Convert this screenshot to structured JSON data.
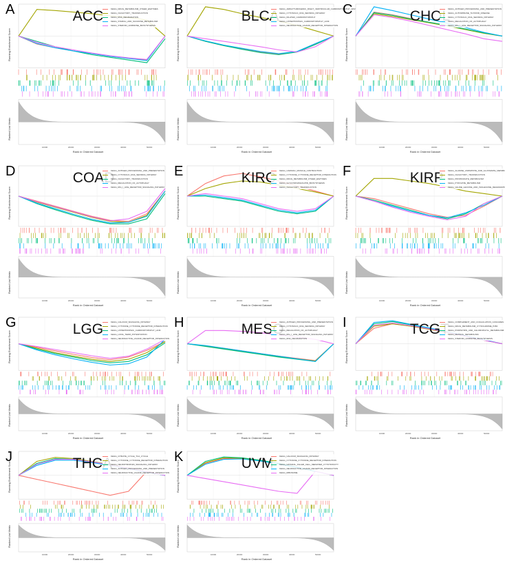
{
  "axes": {
    "xlabel": "Rank in Ordered Dataset",
    "ylabel_es": "Running Enrichment Score",
    "ylabel_metric": "Ranked List Metric",
    "xticks": [
      "10000",
      "20000",
      "30000",
      "40000",
      "50000"
    ]
  },
  "colors": [
    "#F8766D",
    "#A3A500",
    "#00BF7D",
    "#00B0F6",
    "#E76BF3"
  ],
  "chart_data": [
    {
      "letter": "A",
      "title": "ACC",
      "type": "line",
      "ylim": [
        -0.6,
        0.6
      ],
      "legend": [
        "KEGG_DRUG_METABOLISM_OTHER_ENZYMES",
        "KEGG_OLFACTORY_TRANSDUCTION",
        "KEGG_RNA_DEGRADATION",
        "KEGG_STARCH_AND_SUCROSE_METABOLISM",
        "KEGG_STEROID_HORMONE_BIOSYNTHESIS"
      ],
      "series": [
        [
          0,
          -0.15,
          -0.22,
          -0.28,
          -0.33,
          -0.38,
          -0.42,
          -0.45,
          0
        ],
        [
          0,
          0.5,
          0.48,
          0.45,
          0.42,
          0.38,
          0.35,
          0.3,
          0
        ],
        [
          0,
          -0.1,
          -0.2,
          -0.28,
          -0.35,
          -0.4,
          -0.45,
          -0.5,
          -0.05
        ],
        [
          0,
          -0.14,
          -0.22,
          -0.28,
          -0.33,
          -0.38,
          -0.42,
          -0.46,
          0
        ],
        [
          0,
          -0.12,
          -0.2,
          -0.26,
          -0.32,
          -0.37,
          -0.41,
          -0.44,
          0
        ]
      ]
    },
    {
      "letter": "B",
      "title": "BLCA",
      "type": "line",
      "ylim": [
        -0.6,
        0.6
      ],
      "legend": [
        "KEGG_ARRHYTHMOGENIC_RIGHT_VENTRICULAR_CARDIOMYOPATHY_ARVC",
        "KEGG_CYTOSOLIC_DNA_SENSING_PATHWAY",
        "KEGG_DILATED_CARDIOMYOPATHY",
        "KEGG_HYPERTROPHIC_CARDIOMYOPATHY_HCM",
        "KEGG_NEUROACTIVE_LIGAND_RECEPTOR_INTERACTION"
      ],
      "series": [
        [
          0,
          -0.1,
          -0.18,
          -0.24,
          -0.3,
          -0.34,
          -0.3,
          -0.15,
          0
        ],
        [
          0,
          0.55,
          0.5,
          0.42,
          0.35,
          0.28,
          0.2,
          0.1,
          0
        ],
        [
          0,
          -0.1,
          -0.18,
          -0.25,
          -0.31,
          -0.35,
          -0.3,
          -0.16,
          0
        ],
        [
          0,
          -0.09,
          -0.17,
          -0.23,
          -0.29,
          -0.33,
          -0.29,
          -0.14,
          0
        ],
        [
          0,
          -0.05,
          -0.1,
          -0.15,
          -0.2,
          -0.26,
          -0.3,
          -0.2,
          0
        ]
      ]
    },
    {
      "letter": "C",
      "title": "CHOL",
      "type": "line",
      "ylim": [
        -0.6,
        0.6
      ],
      "legend": [
        "KEGG_ANTIGEN_PROCESSING_AND_PRESENTATION",
        "KEGG_AUTOIMMUNE_THYROID_DISEASE",
        "KEGG_CYTOSOLIC_DNA_SENSING_PATHWAY",
        "KEGG_REGULATION_OF_AUTOPHAGY",
        "KEGG_RIG_I_LIKE_RECEPTOR_SIGNALING_PATHWAY"
      ],
      "series": [
        [
          0,
          0.45,
          0.4,
          0.33,
          0.26,
          0.2,
          0.13,
          0.06,
          0
        ],
        [
          0,
          0.42,
          0.37,
          0.31,
          0.25,
          0.19,
          0.12,
          0.05,
          0
        ],
        [
          0,
          0.44,
          0.39,
          0.32,
          0.26,
          0.2,
          0.13,
          0.06,
          0
        ],
        [
          0,
          0.55,
          0.48,
          0.4,
          0.32,
          0.24,
          0.16,
          0.07,
          0
        ],
        [
          0,
          0.4,
          0.35,
          0.28,
          0.2,
          0.12,
          0.04,
          -0.05,
          -0.1
        ]
      ]
    },
    {
      "letter": "D",
      "title": "COAD",
      "type": "line",
      "ylim": [
        -0.6,
        0.6
      ],
      "legend": [
        "KEGG_ANTIGEN_PROCESSING_AND_PRESENTATION",
        "KEGG_CYTOSOLIC_DNA_SENSING_PATHWAY",
        "KEGG_OLFACTORY_TRANSDUCTION",
        "KEGG_REGULATION_OF_AUTOPHAGY",
        "KEGG_RIG_I_LIKE_RECEPTOR_SIGNALING_PATHWAY"
      ],
      "series": [
        [
          0,
          -0.1,
          -0.2,
          -0.3,
          -0.4,
          -0.48,
          -0.5,
          -0.35,
          0.1
        ],
        [
          0,
          -0.12,
          -0.22,
          -0.32,
          -0.42,
          -0.5,
          -0.52,
          -0.38,
          0.1
        ],
        [
          0,
          -0.15,
          -0.27,
          -0.38,
          -0.48,
          -0.55,
          -0.55,
          -0.45,
          0.05
        ],
        [
          0,
          -0.14,
          -0.25,
          -0.36,
          -0.46,
          -0.53,
          -0.52,
          -0.4,
          0.1
        ],
        [
          0,
          -0.11,
          -0.21,
          -0.31,
          -0.41,
          -0.49,
          -0.45,
          -0.3,
          0.15
        ]
      ]
    },
    {
      "letter": "E",
      "title": "KIRC",
      "type": "line",
      "ylim": [
        -0.6,
        0.6
      ],
      "legend": [
        "KEGG_CARDIAC_MUSCLE_CONTRACTION",
        "KEGG_CYTOKINE_CYTOKINE_RECEPTOR_INTERACTION",
        "KEGG_DRUG_METABOLISM_OTHER_ENZYMES",
        "KEGG_GLYCOSPHINGOLIPID_BIOSYNTHESIS",
        "KEGG_OLFACTORY_TRANSDUCTION"
      ],
      "series": [
        [
          0,
          0.25,
          0.4,
          0.45,
          0.38,
          0.3,
          0.2,
          0.1,
          0
        ],
        [
          0,
          0.15,
          0.25,
          0.3,
          0.28,
          0.22,
          0.15,
          0.08,
          0
        ],
        [
          0,
          0,
          -0.05,
          -0.1,
          -0.2,
          -0.3,
          -0.35,
          -0.3,
          0
        ],
        [
          0,
          0.02,
          -0.03,
          -0.08,
          -0.18,
          -0.28,
          -0.33,
          -0.28,
          0
        ],
        [
          0,
          0.05,
          0,
          -0.05,
          -0.15,
          -0.25,
          -0.3,
          -0.25,
          0
        ]
      ]
    },
    {
      "letter": "F",
      "title": "KIRP",
      "type": "line",
      "ylim": [
        -0.6,
        0.6
      ],
      "legend": [
        "KEGG_ALANINE_ASPARTATE_AND_GLUTAMATE_METABOLISM",
        "KEGG_OLFACTORY_TRANSDUCTION",
        "KEGG_PROPANOATE_METABOLISM",
        "KEGG_PYRUVATE_METABOLISM",
        "KEGG_VALINE_LEUCINE_AND_ISOLEUCINE_DEGRADATION"
      ],
      "series": [
        [
          0,
          -0.05,
          -0.15,
          -0.25,
          -0.35,
          -0.42,
          -0.38,
          -0.2,
          0
        ],
        [
          0,
          0.35,
          0.35,
          0.3,
          0.25,
          0.18,
          0.1,
          0.05,
          0
        ],
        [
          0,
          -0.08,
          -0.18,
          -0.28,
          -0.38,
          -0.45,
          -0.35,
          -0.15,
          0
        ],
        [
          0,
          -0.1,
          -0.2,
          -0.3,
          -0.38,
          -0.43,
          -0.33,
          -0.18,
          0
        ],
        [
          0,
          -0.1,
          -0.22,
          -0.32,
          -0.4,
          -0.47,
          -0.4,
          -0.15,
          0
        ]
      ]
    },
    {
      "letter": "G",
      "title": "LGG",
      "type": "line",
      "ylim": [
        -0.6,
        0.6
      ],
      "legend": [
        "KEGG_CALCIUM_SIGNALING_PATHWAY",
        "KEGG_CYTOKINE_CYTOKINE_RECEPTOR_INTERACTION",
        "KEGG_HYPERTROPHIC_CARDIOMYOPATHY_HCM",
        "KEGG_LONG_TERM_POTENTIATION",
        "KEGG_NEUROACTIVE_LIGAND_RECEPTOR_INTERACTION"
      ],
      "series": [
        [
          0,
          -0.08,
          -0.16,
          -0.24,
          -0.31,
          -0.36,
          -0.3,
          -0.15,
          0.05
        ],
        [
          0,
          -0.1,
          -0.2,
          -0.28,
          -0.35,
          -0.4,
          -0.35,
          -0.2,
          0.05
        ],
        [
          0,
          -0.12,
          -0.22,
          -0.3,
          -0.38,
          -0.43,
          -0.4,
          -0.25,
          0.02
        ],
        [
          0,
          -0.14,
          -0.25,
          -0.34,
          -0.42,
          -0.48,
          -0.45,
          -0.3,
          0.1
        ],
        [
          0,
          -0.06,
          -0.13,
          -0.2,
          -0.27,
          -0.33,
          -0.28,
          -0.12,
          0.1
        ]
      ]
    },
    {
      "letter": "H",
      "title": "MESO",
      "type": "line",
      "ylim": [
        -0.6,
        0.6
      ],
      "legend": [
        "KEGG_ANTIGEN_PROCESSING_AND_PRESENTATION",
        "KEGG_CYTOSOLIC_DNA_SENSING_PATHWAY",
        "KEGG_REGULATION_OF_AUTOPHAGY",
        "KEGG_RIG_I_LIKE_RECEPTOR_SIGNALING_PATHWAY",
        "KEGG_RNA_DEGRADATION"
      ],
      "series": [
        [
          0,
          -0.05,
          -0.1,
          -0.16,
          -0.22,
          -0.28,
          -0.33,
          -0.38,
          0
        ],
        [
          0,
          -0.05,
          -0.11,
          -0.17,
          -0.23,
          -0.29,
          -0.34,
          -0.39,
          0
        ],
        [
          0,
          -0.06,
          -0.12,
          -0.18,
          -0.24,
          -0.3,
          -0.35,
          -0.4,
          0
        ],
        [
          0,
          -0.04,
          -0.1,
          -0.16,
          -0.22,
          -0.28,
          -0.34,
          -0.4,
          0
        ],
        [
          0,
          0.3,
          0.3,
          0.28,
          0.25,
          0.2,
          0.15,
          0.1,
          0
        ]
      ]
    },
    {
      "letter": "I",
      "title": "TCGT",
      "type": "line",
      "ylim": [
        -0.6,
        0.6
      ],
      "legend": [
        "KEGG_COMPLEMENT_AND_COAGULATION_CASCADES",
        "KEGG_DRUG_METABOLISM_CYTOCHROME_P450",
        "KEGG_PORPHYRIN_AND_CHLOROPHYLL_METABOLISM",
        "KEGG_RETINOL_METABOLISM",
        "KEGG_STEROID_HORMONE_BIOSYNTHESIS"
      ],
      "series": [
        [
          0,
          0.35,
          0.45,
          0.4,
          0.33,
          0.25,
          0.17,
          0.08,
          0
        ],
        [
          0,
          0.4,
          0.45,
          0.4,
          0.33,
          0.25,
          0.17,
          0.08,
          0
        ],
        [
          0,
          0.45,
          0.5,
          0.43,
          0.35,
          0.27,
          0.18,
          0.09,
          0
        ],
        [
          0,
          0.48,
          0.52,
          0.44,
          0.36,
          0.27,
          0.18,
          0.09,
          0
        ],
        [
          0,
          0.42,
          0.47,
          0.41,
          0.34,
          0.26,
          0.17,
          0.08,
          0
        ]
      ]
    },
    {
      "letter": "J",
      "title": "THCA",
      "type": "line",
      "ylim": [
        -0.6,
        0.6
      ],
      "legend": [
        "KEGG_CITRATE_CYCLE_TCA_CYCLE",
        "KEGG_CYTOKINE_CYTOKINE_RECEPTOR_INTERACTION",
        "KEGG_NEUROTROPHIN_SIGNALING_PATHWAY",
        "KEGG_ANTIGEN_PROCESSING_AND_PRESENTATION",
        "KEGG_NEUROACTIVE_LIGAND_RECEPTOR_INTERACTION"
      ],
      "series": [
        [
          0,
          -0.1,
          -0.2,
          -0.3,
          -0.4,
          -0.5,
          -0.4,
          0.1,
          0
        ],
        [
          0,
          0.35,
          0.45,
          0.42,
          0.35,
          0.27,
          0.18,
          0.09,
          0
        ],
        [
          0,
          0.3,
          0.42,
          0.4,
          0.34,
          0.26,
          0.17,
          0.08,
          0
        ],
        [
          0,
          0.25,
          0.38,
          0.38,
          0.32,
          0.25,
          0.17,
          0.08,
          0
        ],
        [
          0,
          0.28,
          0.4,
          0.4,
          0.34,
          0.26,
          0.18,
          0.09,
          0
        ]
      ]
    },
    {
      "letter": "K",
      "title": "UVM",
      "type": "line",
      "ylim": [
        -0.6,
        0.6
      ],
      "legend": [
        "KEGG_CALCIUM_SIGNALING_PATHWAY",
        "KEGG_CYTOKINE_CYTOKINE_RECEPTOR_INTERACTION",
        "KEGG_NATURAL_KILLER_CELL_MEDIATED_CYTOTOXICITY",
        "KEGG_NEUROACTIVE_LIGAND_RECEPTOR_INTERACTION",
        "KEGG_RIBOSOME"
      ],
      "series": [
        [
          0,
          0.3,
          0.42,
          0.42,
          0.36,
          0.28,
          0.2,
          0.1,
          0
        ],
        [
          0,
          0.32,
          0.44,
          0.43,
          0.37,
          0.29,
          0.2,
          0.1,
          0
        ],
        [
          0,
          0.35,
          0.46,
          0.44,
          0.38,
          0.3,
          0.2,
          0.1,
          0
        ],
        [
          0,
          0.28,
          0.4,
          0.41,
          0.36,
          0.28,
          0.2,
          0.1,
          0
        ],
        [
          0,
          -0.08,
          -0.16,
          -0.24,
          -0.32,
          -0.4,
          -0.45,
          0.1,
          0
        ]
      ]
    }
  ]
}
